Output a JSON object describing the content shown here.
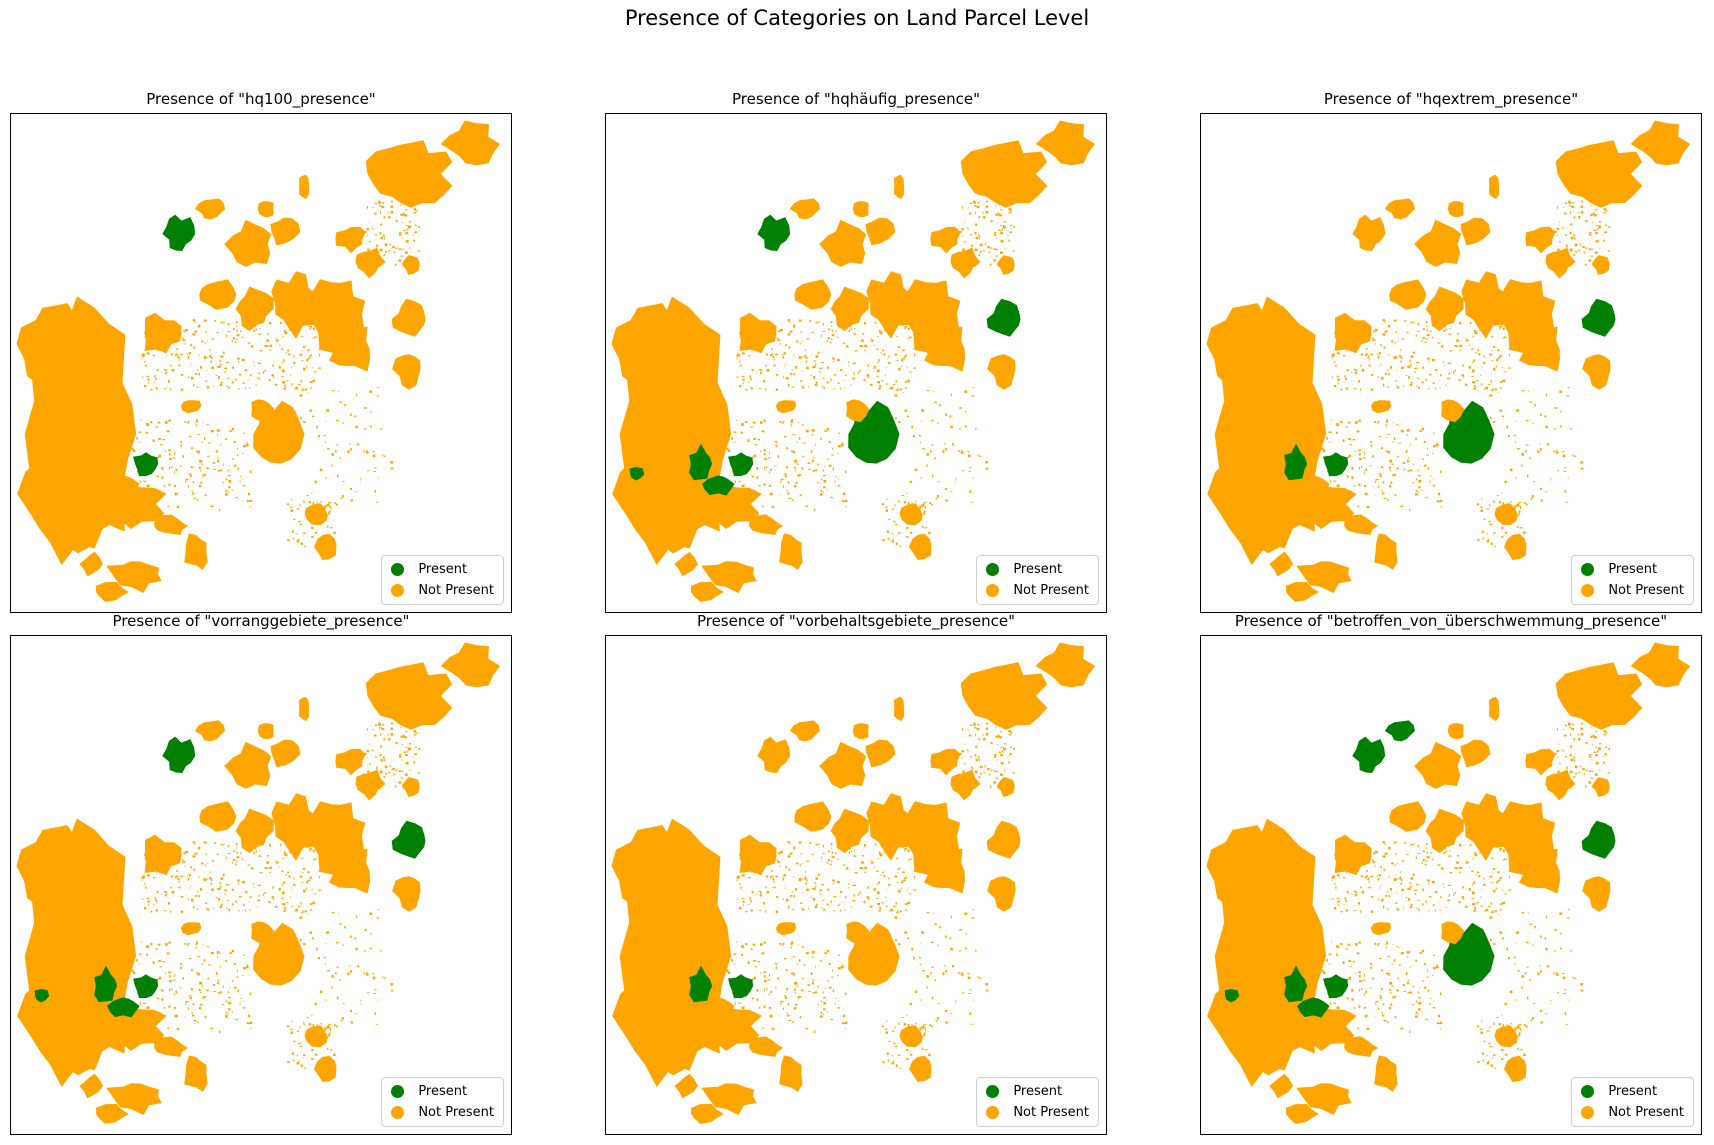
{
  "title": "Presence of Categories on Land Parcel Level",
  "colors": {
    "present": "#008000",
    "not_present": "#FFA500"
  },
  "legend": {
    "present": "Present",
    "not_present": "Not Present"
  },
  "panels": [
    {
      "title": "Presence of \"hq100_presence\"",
      "present_regions": [
        "r-north-center",
        "r-lower-left-mid"
      ]
    },
    {
      "title": "Presence of \"hqhäufig_presence\"",
      "present_regions": [
        "r-north-center",
        "r-east",
        "r-center-south",
        "r-lower-left-mid",
        "r-lower-left",
        "r-lower-left-south",
        "r-far-left-speck"
      ]
    },
    {
      "title": "Presence of \"hqextrem_presence\"",
      "present_regions": [
        "r-east",
        "r-center-south",
        "r-lower-left-mid",
        "r-lower-left"
      ]
    },
    {
      "title": "Presence of \"vorranggebiete_presence\"",
      "present_regions": [
        "r-north-center",
        "r-east",
        "r-lower-left-mid",
        "r-lower-left",
        "r-lower-left-south",
        "r-far-left-speck"
      ]
    },
    {
      "title": "Presence of \"vorbehaltsgebiete_presence\"",
      "present_regions": [
        "r-lower-left-mid",
        "r-lower-left"
      ]
    },
    {
      "title": "Presence of \"betroffen_von_überschwemmung_presence\"",
      "present_regions": [
        "r-north-center",
        "r-north-small",
        "r-east",
        "r-center-south",
        "r-lower-left-mid",
        "r-lower-left",
        "r-lower-left-south",
        "r-far-left-speck"
      ]
    }
  ]
}
